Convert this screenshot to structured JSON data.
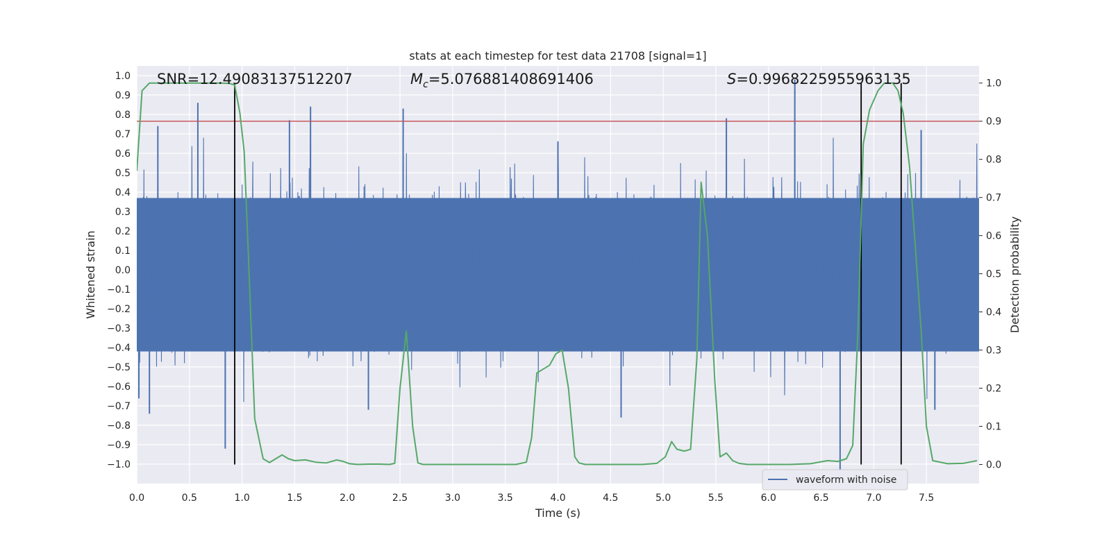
{
  "chart_data": {
    "type": "line",
    "title": "stats at each timestep for test data 21708 [signal=1]",
    "xlabel": "Time (s)",
    "ylabel_left": "Whitened strain",
    "ylabel_right": "Detection probability",
    "xlim": [
      0.0,
      8.0
    ],
    "ylim_left": [
      -1.1,
      1.05
    ],
    "ylim_right": [
      -0.05,
      1.045
    ],
    "x_ticks": [
      0.0,
      0.5,
      1.0,
      1.5,
      2.0,
      2.5,
      3.0,
      3.5,
      4.0,
      4.5,
      5.0,
      5.5,
      6.0,
      6.5,
      7.0,
      7.5
    ],
    "x_tick_labels": [
      "0.0",
      "0.5",
      "1.0",
      "1.5",
      "2.0",
      "2.5",
      "3.0",
      "3.5",
      "4.0",
      "4.5",
      "5.0",
      "5.5",
      "6.0",
      "6.5",
      "7.0",
      "7.5"
    ],
    "y_left_ticks": [
      1.0,
      0.9,
      0.8,
      0.7,
      0.6,
      0.5,
      0.4,
      0.3,
      0.2,
      0.1,
      0.0,
      -0.1,
      -0.2,
      -0.3,
      -0.4,
      -0.5,
      -0.6,
      -0.7,
      -0.8,
      -0.9,
      -1.0
    ],
    "y_left_tick_labels": [
      "1.0",
      "0.9",
      "0.8",
      "0.7",
      "0.6",
      "0.5",
      "0.4",
      "0.3",
      "0.2",
      "0.1",
      "0.0",
      "−0.1",
      "−0.2",
      "−0.3",
      "−0.4",
      "−0.5",
      "−0.6",
      "−0.7",
      "−0.8",
      "−0.9",
      "−1.0"
    ],
    "y_right_ticks": [
      0.0,
      0.1,
      0.2,
      0.3,
      0.4,
      0.5,
      0.6,
      0.7,
      0.8,
      0.9,
      1.0
    ],
    "y_right_tick_labels": [
      "0.0",
      "0.1",
      "0.2",
      "0.3",
      "0.4",
      "0.5",
      "0.6",
      "0.7",
      "0.8",
      "0.9",
      "1.0"
    ],
    "grid": true,
    "legend": {
      "placement": "lower-right",
      "entries": [
        {
          "label": "waveform with noise",
          "color": "#4c72b0"
        }
      ]
    },
    "annotations": {
      "snr": "SNR=12.49083137512207",
      "mc_symbol": "M",
      "mc_sub": "c",
      "mc_value": "=5.076881408691406",
      "s_symbol": "S",
      "s_value": "=0.9968225955963135"
    },
    "threshold_line": {
      "axis": "right",
      "y": 0.9,
      "color": "#c44e52"
    },
    "vertical_lines": {
      "x": [
        0.93,
        6.88,
        7.26
      ],
      "color": "#000000"
    },
    "colors": {
      "waveform": "#4c72b0",
      "probability": "#55a868",
      "plot_bg": "#eaeaf2",
      "grid": "#ffffff"
    },
    "series": [
      {
        "name": "waveform with noise",
        "axis": "left",
        "color": "#4c72b0",
        "envelope_note_hidden": true,
        "peaks": [
          {
            "x": 0.02,
            "y": -0.66
          },
          {
            "x": 0.12,
            "y": -0.74
          },
          {
            "x": 0.2,
            "y": 0.74
          },
          {
            "x": 0.58,
            "y": 0.86
          },
          {
            "x": 0.84,
            "y": -0.92
          },
          {
            "x": 1.45,
            "y": 0.77
          },
          {
            "x": 1.65,
            "y": 0.84
          },
          {
            "x": 2.2,
            "y": -0.72
          },
          {
            "x": 2.53,
            "y": 0.83
          },
          {
            "x": 4.0,
            "y": 0.66
          },
          {
            "x": 4.6,
            "y": -0.76
          },
          {
            "x": 5.6,
            "y": 0.78
          },
          {
            "x": 6.25,
            "y": 0.98
          },
          {
            "x": 6.68,
            "y": -1.04
          },
          {
            "x": 7.45,
            "y": 0.72
          },
          {
            "x": 7.58,
            "y": -0.72
          }
        ]
      },
      {
        "name": "",
        "axis": "right",
        "color": "#55a868",
        "x": [
          0.0,
          0.05,
          0.12,
          0.2,
          0.4,
          0.6,
          0.8,
          0.88,
          0.93,
          0.98,
          1.02,
          1.06,
          1.12,
          1.2,
          1.26,
          1.32,
          1.38,
          1.44,
          1.5,
          1.6,
          1.7,
          1.8,
          1.9,
          1.96,
          2.02,
          2.1,
          2.2,
          2.3,
          2.4,
          2.45,
          2.5,
          2.56,
          2.62,
          2.67,
          2.72,
          2.8,
          2.9,
          3.0,
          3.2,
          3.4,
          3.6,
          3.7,
          3.75,
          3.8,
          3.86,
          3.92,
          3.98,
          4.04,
          4.1,
          4.16,
          4.2,
          4.26,
          4.4,
          4.6,
          4.8,
          4.94,
          5.02,
          5.08,
          5.13,
          5.2,
          5.26,
          5.32,
          5.36,
          5.42,
          5.49,
          5.54,
          5.6,
          5.66,
          5.72,
          5.8,
          6.0,
          6.2,
          6.4,
          6.56,
          6.66,
          6.74,
          6.8,
          6.85,
          6.9,
          6.96,
          7.04,
          7.1,
          7.18,
          7.23,
          7.28,
          7.34,
          7.4,
          7.45,
          7.5,
          7.56,
          7.7,
          7.85,
          7.98
        ],
        "y": [
          0.77,
          0.98,
          1.0,
          1.0,
          1.0,
          1.0,
          1.0,
          0.999,
          0.995,
          0.92,
          0.82,
          0.55,
          0.12,
          0.015,
          0.005,
          0.015,
          0.025,
          0.015,
          0.01,
          0.012,
          0.006,
          0.004,
          0.012,
          0.008,
          0.002,
          0.0,
          0.001,
          0.001,
          0.0,
          0.003,
          0.2,
          0.35,
          0.1,
          0.004,
          0.0,
          0.0,
          0.0,
          0.0,
          0.0,
          0.0,
          0.0,
          0.006,
          0.07,
          0.24,
          0.25,
          0.26,
          0.29,
          0.3,
          0.2,
          0.02,
          0.004,
          0.0,
          0.0,
          0.0,
          0.0,
          0.003,
          0.02,
          0.06,
          0.04,
          0.035,
          0.04,
          0.28,
          0.74,
          0.6,
          0.22,
          0.02,
          0.03,
          0.01,
          0.003,
          0.0,
          0.0,
          0.0,
          0.002,
          0.01,
          0.008,
          0.015,
          0.05,
          0.35,
          0.84,
          0.93,
          0.98,
          1.0,
          1.0,
          0.98,
          0.92,
          0.78,
          0.55,
          0.35,
          0.1,
          0.01,
          0.002,
          0.003,
          0.01
        ]
      }
    ]
  }
}
